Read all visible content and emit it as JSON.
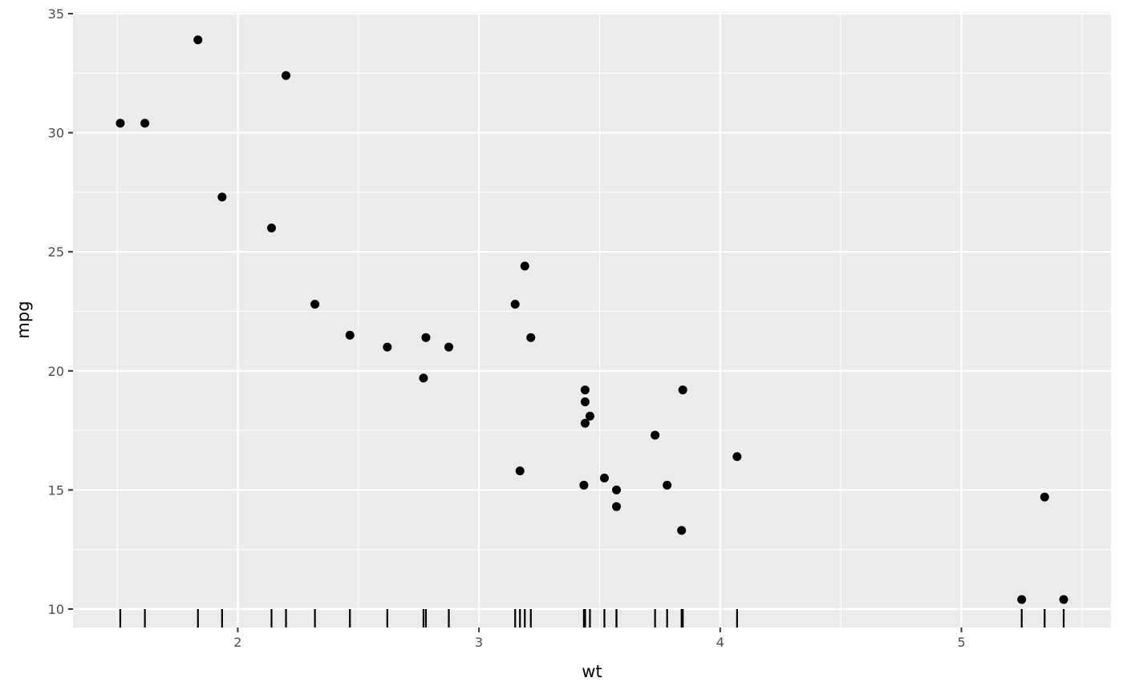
{
  "chart_data": {
    "type": "scatter",
    "title": "",
    "xlabel": "wt",
    "ylabel": "mpg",
    "xlim": [
      1.317,
      5.62
    ],
    "ylim": [
      9.225,
      35.075
    ],
    "xticks": [
      2,
      3,
      4,
      5
    ],
    "xtick_labels": [
      "2",
      "3",
      "4",
      "5"
    ],
    "yticks": [
      10,
      15,
      20,
      25,
      30,
      35
    ],
    "ytick_labels": [
      "10",
      "15",
      "20",
      "25",
      "30",
      "35"
    ],
    "grid": true,
    "rug": "x-bottom",
    "colors": {
      "panel": "#EBEBEB",
      "grid": "#FFFFFF",
      "point": "#000000"
    },
    "x": [
      2.62,
      2.875,
      2.32,
      3.215,
      3.44,
      3.46,
      3.57,
      3.19,
      3.15,
      3.44,
      3.44,
      4.07,
      3.73,
      3.78,
      5.25,
      5.424,
      5.345,
      2.2,
      1.615,
      1.835,
      2.465,
      3.52,
      3.435,
      3.84,
      3.845,
      1.935,
      2.14,
      1.513,
      3.17,
      2.77,
      3.57,
      2.78
    ],
    "y": [
      21.0,
      21.0,
      22.8,
      21.4,
      18.7,
      18.1,
      14.3,
      24.4,
      22.8,
      19.2,
      17.8,
      16.4,
      17.3,
      15.2,
      10.4,
      10.4,
      14.7,
      32.4,
      30.4,
      33.9,
      21.5,
      15.5,
      15.2,
      13.3,
      19.2,
      27.3,
      26.0,
      30.4,
      15.8,
      19.7,
      15.0,
      21.4
    ]
  }
}
